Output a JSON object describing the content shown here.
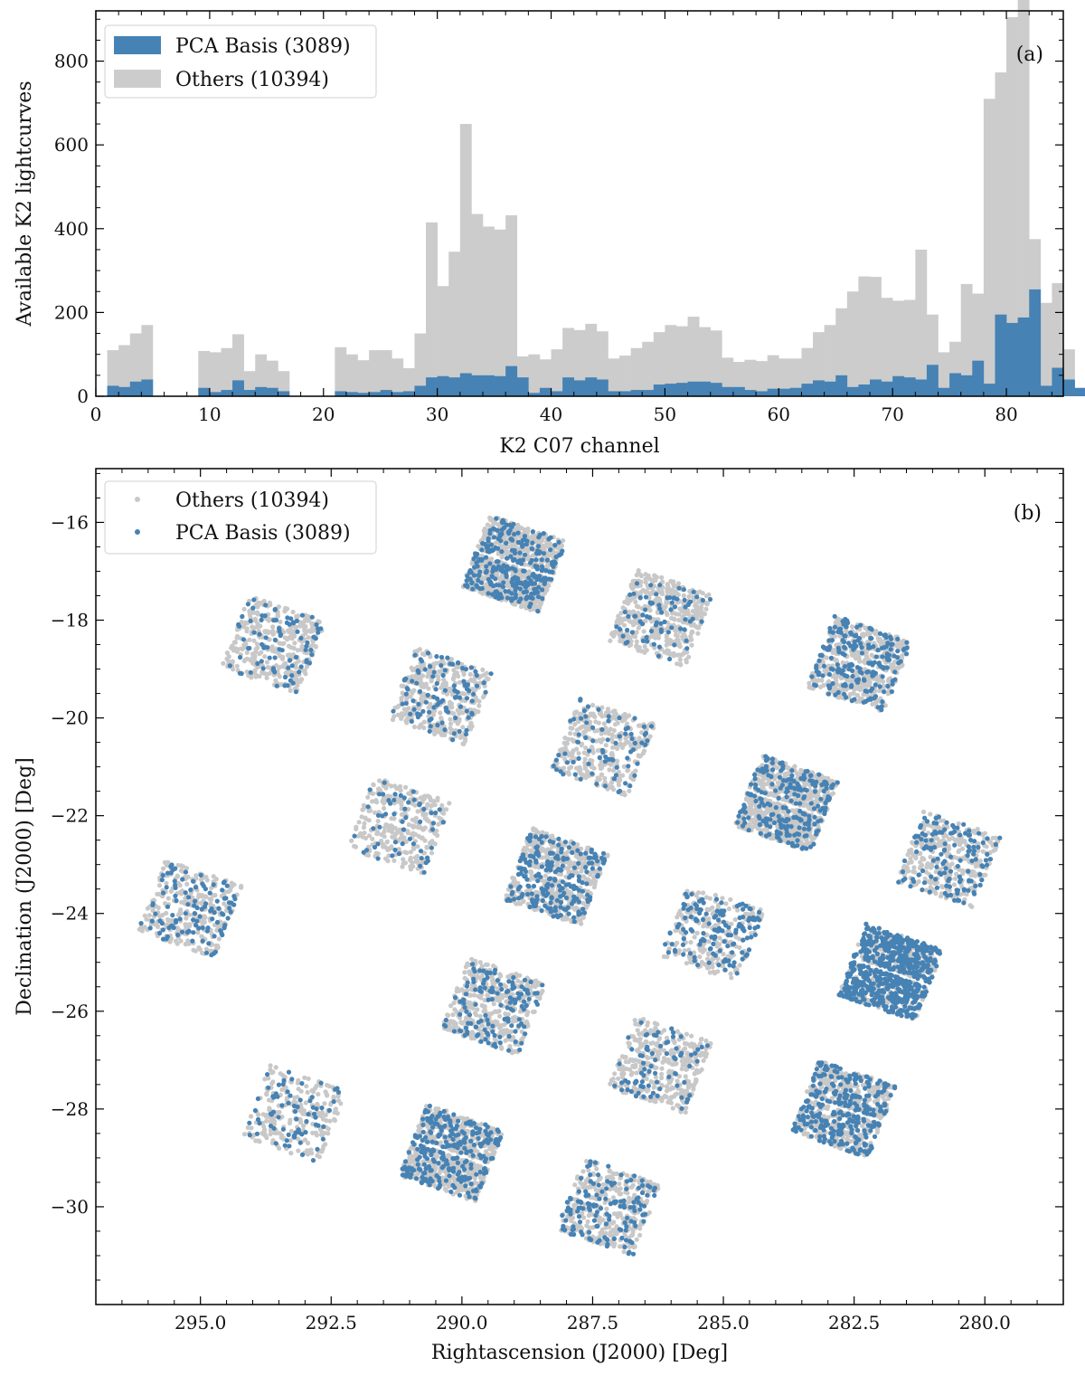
{
  "chart_data": [
    {
      "type": "bar",
      "panel_tag": "(a)",
      "xlabel": "K2 C07 channel",
      "ylabel": "Available K2 lightcurves",
      "xlim": [
        0,
        85
      ],
      "ylim": [
        0,
        920
      ],
      "xticks": [
        0,
        10,
        20,
        30,
        40,
        50,
        60,
        70,
        80
      ],
      "yticks": [
        0,
        200,
        400,
        600,
        800
      ],
      "legend_position": "top-left",
      "bin_start": 1,
      "bin_width": 1,
      "colors": {
        "pca": "#4682b4",
        "others": "#cccccc"
      },
      "series": [
        {
          "name": "PCA Basis (3089)",
          "values": [
            25,
            22,
            35,
            40,
            0,
            0,
            0,
            0,
            20,
            10,
            15,
            38,
            15,
            22,
            20,
            12,
            0,
            0,
            0,
            0,
            12,
            10,
            8,
            10,
            15,
            10,
            12,
            25,
            45,
            48,
            45,
            55,
            50,
            50,
            48,
            72,
            45,
            8,
            20,
            12,
            45,
            38,
            45,
            40,
            12,
            12,
            15,
            15,
            28,
            30,
            32,
            35,
            35,
            32,
            22,
            22,
            15,
            12,
            18,
            18,
            20,
            30,
            38,
            35,
            50,
            22,
            28,
            40,
            35,
            48,
            45,
            40,
            75,
            20,
            55,
            50,
            85,
            30,
            195,
            175,
            188,
            255,
            25,
            68,
            40,
            20
          ]
        },
        {
          "name": "Others (10394)",
          "values": [
            85,
            100,
            115,
            130,
            0,
            0,
            0,
            0,
            88,
            95,
            100,
            110,
            45,
            78,
            65,
            48,
            0,
            0,
            0,
            0,
            105,
            90,
            78,
            100,
            95,
            80,
            55,
            125,
            370,
            215,
            300,
            595,
            385,
            355,
            350,
            360,
            50,
            92,
            68,
            100,
            118,
            120,
            128,
            115,
            78,
            85,
            100,
            115,
            125,
            140,
            135,
            155,
            130,
            125,
            70,
            60,
            72,
            72,
            80,
            72,
            70,
            85,
            115,
            135,
            160,
            228,
            258,
            245,
            200,
            180,
            185,
            310,
            120,
            85,
            75,
            218,
            160,
            680,
            578,
            730,
            890,
            120,
            198,
            202,
            72
          ]
        }
      ]
    },
    {
      "type": "scatter",
      "panel_tag": "(b)",
      "xlabel": "Rightascension (J2000) [Deg]",
      "ylabel": "Declination (J2000) [Deg]",
      "xlim": [
        297.0,
        278.5
      ],
      "ylim": [
        -32.0,
        -14.9
      ],
      "x_inverted": true,
      "xticks": [
        295.0,
        292.5,
        290.0,
        287.5,
        285.0,
        282.5,
        280.0
      ],
      "yticks": [
        -16,
        -18,
        -20,
        -22,
        -24,
        -26,
        -28,
        -30
      ],
      "legend_position": "top-left",
      "colors": {
        "others": "#c8c8c8",
        "pca": "#4682b4"
      },
      "series": [
        {
          "name": "Others (10394)",
          "total": 10394
        },
        {
          "name": "PCA Basis (3089)",
          "total": 3089
        }
      ],
      "modules": [
        {
          "ra": 289.0,
          "dec": -16.85,
          "others": 800,
          "pca": 280
        },
        {
          "ra": 286.2,
          "dec": -17.95,
          "others": 440,
          "pca": 75
        },
        {
          "ra": 282.4,
          "dec": -18.9,
          "others": 470,
          "pca": 200
        },
        {
          "ra": 293.6,
          "dec": -18.5,
          "others": 360,
          "pca": 85
        },
        {
          "ra": 290.4,
          "dec": -19.55,
          "others": 360,
          "pca": 100
        },
        {
          "ra": 287.3,
          "dec": -20.6,
          "others": 330,
          "pca": 75
        },
        {
          "ra": 283.8,
          "dec": -21.75,
          "others": 700,
          "pca": 220
        },
        {
          "ra": 280.7,
          "dec": -22.9,
          "others": 330,
          "pca": 130
        },
        {
          "ra": 291.2,
          "dec": -22.2,
          "others": 300,
          "pca": 55
        },
        {
          "ra": 288.2,
          "dec": -23.25,
          "others": 500,
          "pca": 220
        },
        {
          "ra": 285.2,
          "dec": -24.4,
          "others": 360,
          "pca": 140
        },
        {
          "ra": 281.8,
          "dec": -25.2,
          "others": 900,
          "pca": 620
        },
        {
          "ra": 295.2,
          "dec": -23.9,
          "others": 300,
          "pca": 110
        },
        {
          "ra": 289.4,
          "dec": -25.9,
          "others": 400,
          "pca": 130
        },
        {
          "ra": 286.2,
          "dec": -27.1,
          "others": 360,
          "pca": 75
        },
        {
          "ra": 282.7,
          "dec": -28.0,
          "others": 500,
          "pca": 290
        },
        {
          "ra": 293.2,
          "dec": -28.1,
          "others": 230,
          "pca": 70
        },
        {
          "ra": 290.2,
          "dec": -28.9,
          "others": 620,
          "pca": 280
        },
        {
          "ra": 287.2,
          "dec": -30.0,
          "others": 330,
          "pca": 140
        }
      ]
    }
  ]
}
